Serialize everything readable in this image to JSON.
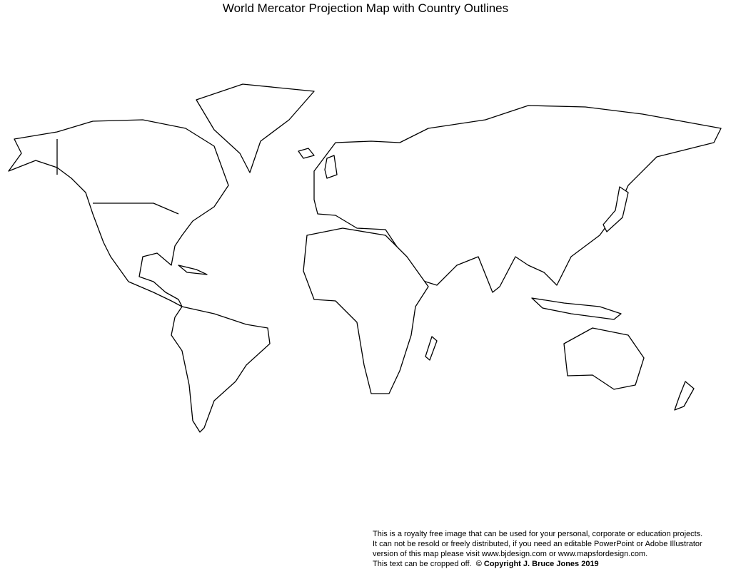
{
  "title": "World Mercator Projection Map with Country Outlines",
  "map": {
    "projection": "Mercator",
    "style": "black country outlines on white",
    "outline_color": "#000000",
    "background": "#ffffff"
  },
  "notice": {
    "line1": "This is a royalty free image that can be used for your personal, corporate or education projects.",
    "line2": "It can not be resold or freely distributed, if you need an editable PowerPoint or Adobe Illustrator",
    "line3": "version of this map please visit www.bjdesign.com or www.mapsfordesign.com.",
    "line4": "This text can be cropped off.",
    "copyright": "© Copyright J. Bruce Jones 2019"
  }
}
